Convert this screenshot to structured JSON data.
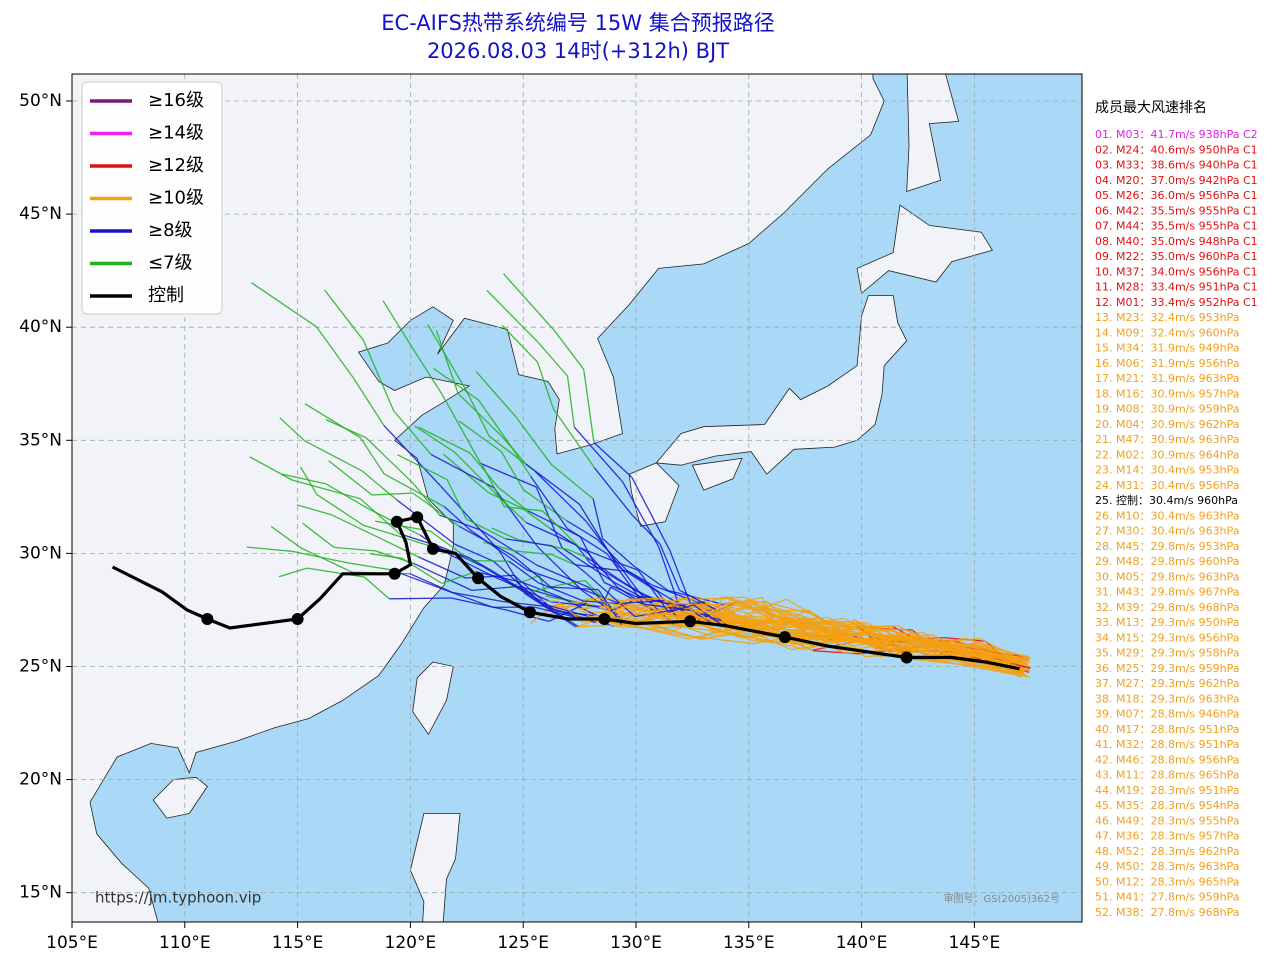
{
  "title": [
    "EC-AIFS热带系统编号 15W 集合预报路径",
    "2026.08.03 14时(+312h) BJT"
  ],
  "legend": [
    {
      "label": "≥16级",
      "color": "#7b1a7b"
    },
    {
      "label": "≥14级",
      "color": "#f020f0"
    },
    {
      "label": "≥12级",
      "color": "#e01010"
    },
    {
      "label": "≥10级",
      "color": "#f5a010"
    },
    {
      "label": "≥8级",
      "color": "#1414d0"
    },
    {
      "label": "≤7级",
      "color": "#20b020"
    },
    {
      "label": "控制",
      "color": "#000000"
    }
  ],
  "x_axis_labels": [
    "105°E",
    "110°E",
    "115°E",
    "120°E",
    "125°E",
    "130°E",
    "135°E",
    "140°E",
    "145°E"
  ],
  "y_axis_labels": [
    "50°N",
    "45°N",
    "40°N",
    "35°N",
    "30°N",
    "25°N",
    "20°N",
    "15°N"
  ],
  "ranking": {
    "heading": "成员最大风速排名",
    "entries": [
      {
        "text": "01. M03：41.7m/s 938hPa C2",
        "color": "#e020e0"
      },
      {
        "text": "02. M24：40.6m/s 950hPa C1",
        "color": "#e01010"
      },
      {
        "text": "03. M33：38.6m/s 940hPa C1",
        "color": "#e01010"
      },
      {
        "text": "04. M20：37.0m/s 942hPa C1",
        "color": "#e01010"
      },
      {
        "text": "05. M26：36.0m/s 956hPa C1",
        "color": "#e01010"
      },
      {
        "text": "06. M42：35.5m/s 955hPa C1",
        "color": "#e01010"
      },
      {
        "text": "07. M44：35.5m/s 955hPa C1",
        "color": "#e01010"
      },
      {
        "text": "08. M40：35.0m/s 948hPa C1",
        "color": "#e01010"
      },
      {
        "text": "09. M22：35.0m/s 960hPa C1",
        "color": "#e01010"
      },
      {
        "text": "10. M37：34.0m/s 956hPa C1",
        "color": "#e01010"
      },
      {
        "text": "11. M28：33.4m/s 951hPa C1",
        "color": "#e01010"
      },
      {
        "text": "12. M01：33.4m/s 952hPa C1",
        "color": "#e01010"
      },
      {
        "text": "13. M23：32.4m/s 953hPa",
        "color": "#f0a020"
      },
      {
        "text": "14. M09：32.4m/s 960hPa",
        "color": "#f0a020"
      },
      {
        "text": "15. M34：31.9m/s 949hPa",
        "color": "#f0a020"
      },
      {
        "text": "16. M06：31.9m/s 956hPa",
        "color": "#f0a020"
      },
      {
        "text": "17. M21：31.9m/s 963hPa",
        "color": "#f0a020"
      },
      {
        "text": "18. M16：30.9m/s 957hPa",
        "color": "#f0a020"
      },
      {
        "text": "19. M08：30.9m/s 959hPa",
        "color": "#f0a020"
      },
      {
        "text": "20. M04：30.9m/s 962hPa",
        "color": "#f0a020"
      },
      {
        "text": "21. M47：30.9m/s 963hPa",
        "color": "#f0a020"
      },
      {
        "text": "22. M02：30.9m/s 964hPa",
        "color": "#f0a020"
      },
      {
        "text": "23. M14：30.4m/s 953hPa",
        "color": "#f0a020"
      },
      {
        "text": "24. M31：30.4m/s 956hPa",
        "color": "#f0a020"
      },
      {
        "text": "25. 控制：30.4m/s 960hPa",
        "color": "#000000"
      },
      {
        "text": "26. M10：30.4m/s 963hPa",
        "color": "#f0a020"
      },
      {
        "text": "27. M30：30.4m/s 963hPa",
        "color": "#f0a020"
      },
      {
        "text": "28. M45：29.8m/s 953hPa",
        "color": "#f0a020"
      },
      {
        "text": "29. M48：29.8m/s 960hPa",
        "color": "#f0a020"
      },
      {
        "text": "30. M05：29.8m/s 963hPa",
        "color": "#f0a020"
      },
      {
        "text": "31. M43：29.8m/s 967hPa",
        "color": "#f0a020"
      },
      {
        "text": "32. M39：29.8m/s 968hPa",
        "color": "#f0a020"
      },
      {
        "text": "33. M13：29.3m/s 950hPa",
        "color": "#f0a020"
      },
      {
        "text": "34. M15：29.3m/s 956hPa",
        "color": "#f0a020"
      },
      {
        "text": "35. M29：29.3m/s 958hPa",
        "color": "#f0a020"
      },
      {
        "text": "36. M25：29.3m/s 959hPa",
        "color": "#f0a020"
      },
      {
        "text": "37. M27：29.3m/s 962hPa",
        "color": "#f0a020"
      },
      {
        "text": "38. M18：29.3m/s 963hPa",
        "color": "#f0a020"
      },
      {
        "text": "39. M07：28.8m/s 946hPa",
        "color": "#f0a020"
      },
      {
        "text": "40. M17：28.8m/s 951hPa",
        "color": "#f0a020"
      },
      {
        "text": "41. M32：28.8m/s 951hPa",
        "color": "#f0a020"
      },
      {
        "text": "42. M46：28.8m/s 956hPa",
        "color": "#f0a020"
      },
      {
        "text": "43. M11：28.8m/s 965hPa",
        "color": "#f0a020"
      },
      {
        "text": "44. M19：28.3m/s 951hPa",
        "color": "#f0a020"
      },
      {
        "text": "45. M35：28.3m/s 954hPa",
        "color": "#f0a020"
      },
      {
        "text": "46. M49：28.3m/s 955hPa",
        "color": "#f0a020"
      },
      {
        "text": "47. M36：28.3m/s 957hPa",
        "color": "#f0a020"
      },
      {
        "text": "48. M52：28.3m/s 962hPa",
        "color": "#f0a020"
      },
      {
        "text": "49. M50：28.3m/s 963hPa",
        "color": "#f0a020"
      },
      {
        "text": "50. M12：28.3m/s 965hPa",
        "color": "#f0a020"
      },
      {
        "text": "51. M41：27.8m/s 959hPa",
        "color": "#f0a020"
      },
      {
        "text": "52. M38：27.8m/s 968hPa",
        "color": "#f0a020"
      }
    ]
  },
  "source_url": "https://jm.typhoon.vip",
  "map_approval": "审图号：GS(2005)362号"
}
